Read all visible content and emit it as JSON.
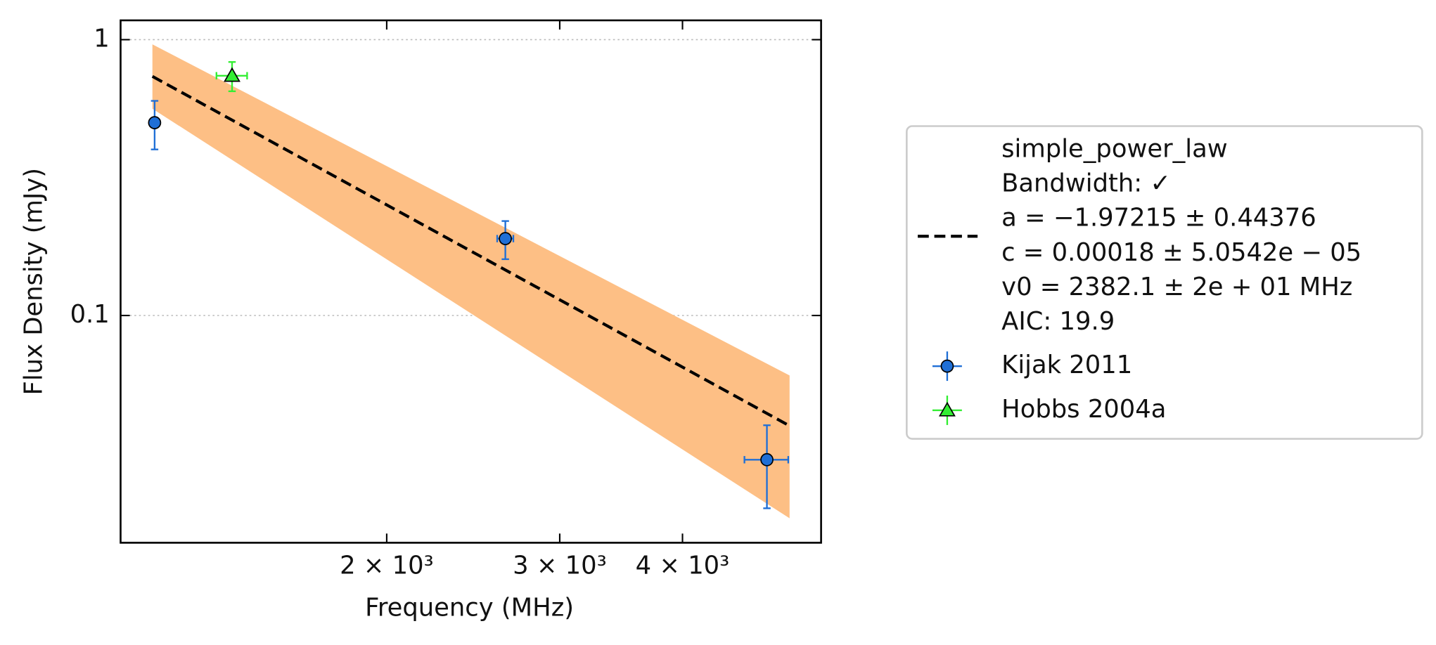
{
  "chart_data": {
    "type": "errorbar",
    "xlabel": "Frequency (MHz)",
    "ylabel": "Flux Density (mJy)",
    "xscale": "log",
    "yscale": "log",
    "xlim": [
      1072,
      5535
    ],
    "ylim": [
      0.015,
      1.175
    ],
    "xticks": [
      {
        "value": 2000,
        "label": "2 × 10³"
      },
      {
        "value": 3000,
        "label": "3 × 10³"
      },
      {
        "value": 4000,
        "label": "4 × 10³"
      }
    ],
    "yticks": [
      {
        "value": 0.1,
        "label": "0.1"
      },
      1
    ],
    "grid": "y",
    "legend": "right",
    "fit": {
      "type": "line",
      "label": [
        "simple_power_law",
        "Bandwidth: ✓",
        "a = −1.97215 ± 0.44376",
        "c = 0.00018 ± 5.0542e − 05",
        "v0 = 2382.1 ± 2e + 01 MHz",
        "AIC: 19.9"
      ],
      "color": "#000000",
      "x": [
        1155,
        5141
      ],
      "values": [
        0.736,
        0.0398
      ],
      "band_upper": [
        0.962,
        0.0606
      ],
      "band_lower": [
        0.562,
        0.0184
      ],
      "band_color": "#fdbf85"
    },
    "series": [
      {
        "name": "Kijak 2011",
        "color": "#1f6fd6",
        "marker": "circle",
        "x": [
          1161,
          2641,
          4875
        ],
        "values": [
          0.5,
          0.19,
          0.03
        ],
        "yerr": [
          0.1,
          0.03,
          0.01
        ],
        "xerr": [
          null,
          50,
          250
        ]
      },
      {
        "name": "Hobbs 2004a",
        "color": "#33ee33",
        "marker": "triangle",
        "x": [
          1392
        ],
        "values": [
          0.74
        ],
        "yerr": [
          0.09
        ],
        "xerr": [
          50
        ]
      }
    ]
  }
}
